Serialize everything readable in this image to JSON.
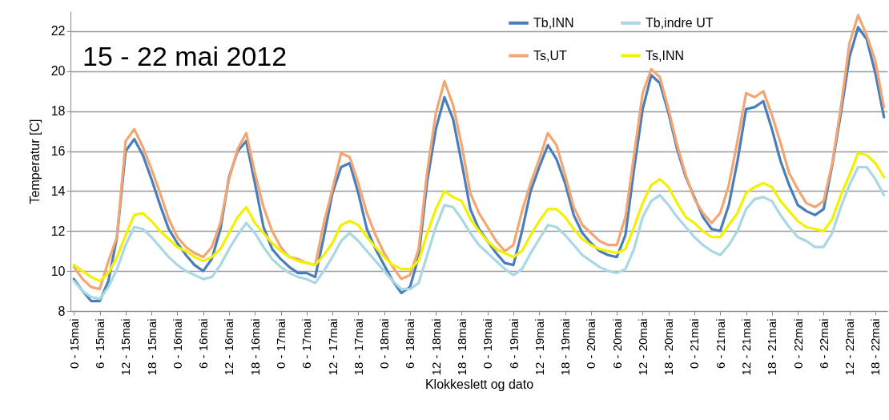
{
  "chart_data": {
    "type": "line",
    "title": "15 - 22 mai 2012",
    "xlabel": "Klokkeslett og dato",
    "ylabel": "Temperatur [C]",
    "ylim": [
      8,
      23
    ],
    "yticks": [
      8,
      10,
      12,
      14,
      16,
      18,
      20,
      22
    ],
    "categories": [
      "0 - 15mai",
      null,
      null,
      "6 - 15mai",
      null,
      null,
      "12 - 15mai",
      null,
      null,
      "18 - 15mai",
      null,
      null,
      "0 - 16mai",
      null,
      null,
      "6 - 16mai",
      null,
      null,
      "12 - 16mai",
      null,
      null,
      "18 - 16mai",
      null,
      null,
      "0 - 17mai",
      null,
      null,
      "6 - 17mai",
      null,
      null,
      "12 - 17mai",
      null,
      null,
      "18 - 17mai",
      null,
      null,
      "0 - 18mai",
      null,
      null,
      "6 - 18mai",
      null,
      null,
      "12 - 18mai",
      null,
      null,
      "18 - 18mai",
      null,
      null,
      "0 - 19mai",
      null,
      null,
      "6 - 19mai",
      null,
      null,
      "12 - 19mai",
      null,
      null,
      "18 - 19mai",
      null,
      null,
      "0 - 20mai",
      null,
      null,
      "6 - 20mai",
      null,
      null,
      "12 - 20mai",
      null,
      null,
      "18 - 20mai",
      null,
      null,
      "0 - 21mai",
      null,
      null,
      "6 - 21mai",
      null,
      null,
      "12 - 21mai",
      null,
      null,
      "18 - 21mai",
      null,
      null,
      "0 - 22mai",
      null,
      null,
      "6 - 22mai",
      null,
      null,
      "12 - 22mai",
      null,
      null,
      "18 - 22mai",
      null
    ],
    "grid": "y",
    "legend": "top right",
    "line_style": "solid",
    "series": [
      {
        "name": "Tb,INN",
        "color": "#4a7ebb",
        "values": [
          9.6,
          9.0,
          8.5,
          8.5,
          9.5,
          11.7,
          16.0,
          16.6,
          15.8,
          14.6,
          13.3,
          12.1,
          11.4,
          10.8,
          10.3,
          10.0,
          10.6,
          12.1,
          14.7,
          16.0,
          16.5,
          14.4,
          12.2,
          11.1,
          10.6,
          10.2,
          9.9,
          9.9,
          9.7,
          11.7,
          13.9,
          15.2,
          15.4,
          13.9,
          12.1,
          11.1,
          10.3,
          9.5,
          8.9,
          9.2,
          10.7,
          14.5,
          17.1,
          18.7,
          17.6,
          15.4,
          13.1,
          12.1,
          11.5,
          10.9,
          10.4,
          10.3,
          12.0,
          14.0,
          15.2,
          16.3,
          15.6,
          14.4,
          12.8,
          11.9,
          11.4,
          11.0,
          10.8,
          10.7,
          11.8,
          15.1,
          18.1,
          19.8,
          19.4,
          17.9,
          16.1,
          14.7,
          13.7,
          12.7,
          12.1,
          12.0,
          13.3,
          15.5,
          18.1,
          18.2,
          18.5,
          17.1,
          15.5,
          14.3,
          13.3,
          13.0,
          12.8,
          13.1,
          15.3,
          17.9,
          20.7,
          22.2,
          21.6,
          19.9,
          17.7
        ]
      },
      {
        "name": "Ts,UT",
        "color": "#f4a672",
        "values": [
          10.2,
          9.6,
          9.2,
          9.1,
          10.5,
          11.7,
          16.5,
          17.1,
          16.2,
          15.1,
          13.9,
          12.6,
          11.7,
          11.2,
          10.9,
          10.7,
          11.2,
          12.4,
          14.6,
          16.1,
          16.9,
          14.9,
          13.2,
          12.0,
          11.2,
          10.7,
          10.6,
          10.4,
          10.3,
          12.4,
          14.1,
          15.9,
          15.7,
          14.4,
          12.9,
          11.8,
          10.9,
          10.2,
          9.6,
          9.8,
          11.1,
          15.0,
          17.9,
          19.5,
          18.3,
          16.3,
          13.9,
          12.9,
          12.2,
          11.5,
          11.0,
          11.3,
          13.0,
          14.4,
          15.6,
          16.9,
          16.3,
          14.8,
          13.2,
          12.3,
          11.9,
          11.5,
          11.3,
          11.3,
          12.7,
          15.8,
          18.9,
          20.1,
          19.7,
          18.1,
          16.3,
          14.8,
          13.6,
          12.9,
          12.4,
          12.9,
          14.3,
          16.5,
          18.9,
          18.7,
          19.0,
          17.8,
          16.4,
          14.9,
          14.1,
          13.4,
          13.2,
          13.5,
          15.4,
          18.2,
          21.4,
          22.8,
          21.8,
          20.5,
          18.2
        ]
      },
      {
        "name": "Tb,indre UT",
        "color": "#a9d8e3",
        "values": [
          9.5,
          9.0,
          8.7,
          8.6,
          9.2,
          10.1,
          11.3,
          12.2,
          12.1,
          11.7,
          11.2,
          10.7,
          10.3,
          10.0,
          9.8,
          9.6,
          9.7,
          10.3,
          11.1,
          11.8,
          12.4,
          11.9,
          11.2,
          10.6,
          10.2,
          9.9,
          9.7,
          9.6,
          9.4,
          10.0,
          10.7,
          11.5,
          11.9,
          11.5,
          11.0,
          10.5,
          10.0,
          9.5,
          9.1,
          9.1,
          9.4,
          10.8,
          12.2,
          13.3,
          13.2,
          12.6,
          11.9,
          11.3,
          10.9,
          10.5,
          10.1,
          9.8,
          10.1,
          10.9,
          11.6,
          12.3,
          12.2,
          11.8,
          11.3,
          10.8,
          10.5,
          10.2,
          10.0,
          9.9,
          10.1,
          11.1,
          12.7,
          13.5,
          13.8,
          13.3,
          12.7,
          12.2,
          11.7,
          11.3,
          11.0,
          10.8,
          11.3,
          12.0,
          13.1,
          13.6,
          13.7,
          13.5,
          12.8,
          12.2,
          11.7,
          11.5,
          11.2,
          11.2,
          11.9,
          13.2,
          14.3,
          15.2,
          15.2,
          14.6,
          13.8
        ]
      },
      {
        "name": "Ts,INN",
        "color": "#f2f200",
        "values": [
          10.3,
          10.0,
          9.7,
          9.5,
          9.9,
          10.7,
          11.8,
          12.8,
          12.9,
          12.5,
          12.0,
          11.6,
          11.2,
          11.0,
          10.7,
          10.5,
          10.7,
          11.1,
          11.9,
          12.7,
          13.2,
          12.4,
          11.9,
          11.4,
          11.0,
          10.7,
          10.5,
          10.4,
          10.3,
          10.8,
          11.4,
          12.3,
          12.5,
          12.3,
          11.7,
          11.2,
          10.7,
          10.3,
          10.1,
          10.1,
          10.5,
          11.9,
          13.1,
          14.0,
          13.7,
          13.5,
          12.6,
          12.0,
          11.5,
          11.1,
          10.9,
          10.7,
          11.0,
          11.8,
          12.5,
          13.1,
          13.1,
          12.7,
          12.1,
          11.6,
          11.3,
          11.1,
          11.0,
          10.9,
          11.1,
          12.2,
          13.4,
          14.3,
          14.6,
          14.2,
          13.4,
          12.7,
          12.4,
          12.0,
          11.7,
          11.7,
          12.3,
          12.9,
          13.9,
          14.2,
          14.4,
          14.2,
          13.5,
          13.0,
          12.5,
          12.2,
          12.1,
          12.0,
          12.6,
          13.8,
          14.8,
          15.9,
          15.8,
          15.4,
          14.7
        ]
      }
    ]
  }
}
